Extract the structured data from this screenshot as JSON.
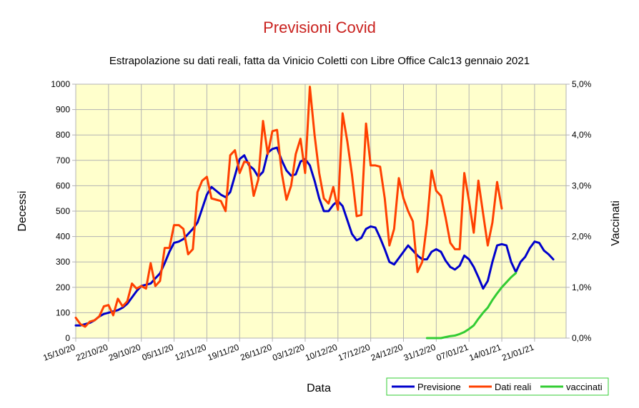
{
  "chart_data": {
    "type": "line",
    "title": "Previsioni Covid",
    "subtitle": "Estrapolazione su dati reali, fatta da Vinicio Coletti con Libre Office Calc13 gennaio 2021",
    "xlabel": "Data",
    "ylabel": "Decessi",
    "y2label": "Vaccinati",
    "x_start": "15/10/20",
    "x_end": "28/01/21",
    "ylim": [
      0,
      1000
    ],
    "y2lim": [
      0,
      5
    ],
    "y_ticks": [
      "0",
      "100",
      "200",
      "300",
      "400",
      "500",
      "600",
      "700",
      "800",
      "900",
      "1000"
    ],
    "y2_ticks": [
      "0,0%",
      "1,0%",
      "2,0%",
      "3,0%",
      "4,0%",
      "5,0%"
    ],
    "x_ticks": [
      "15/10/20",
      "22/10/20",
      "29/10/20",
      "05/11/20",
      "12/11/20",
      "19/11/20",
      "26/11/20",
      "03/12/20",
      "10/12/20",
      "17/12/20",
      "24/12/20",
      "31/12/20",
      "07/01/21",
      "14/01/21",
      "21/01/21"
    ],
    "grid": true,
    "legend_position": "bottom-right",
    "colors": {
      "plot_background": "#ffffcc",
      "grid": "#b3b3b3",
      "title": "#c9211e",
      "Previsione": "#0000cc",
      "Dati reali": "#ff4000",
      "vaccinati": "#33cc33"
    },
    "series": [
      {
        "name": "Previsione",
        "axis": "left",
        "start_date": "15/10/20",
        "values": [
          50,
          50,
          55,
          60,
          70,
          85,
          95,
          100,
          105,
          110,
          120,
          135,
          160,
          185,
          205,
          210,
          215,
          235,
          255,
          295,
          340,
          375,
          380,
          390,
          410,
          430,
          455,
          510,
          565,
          595,
          580,
          565,
          555,
          575,
          640,
          705,
          720,
          680,
          665,
          635,
          655,
          730,
          745,
          750,
          700,
          660,
          640,
          645,
          695,
          705,
          680,
          620,
          550,
          500,
          500,
          525,
          540,
          520,
          465,
          410,
          385,
          395,
          430,
          440,
          435,
          395,
          350,
          300,
          290,
          315,
          340,
          365,
          345,
          325,
          310,
          310,
          340,
          350,
          340,
          305,
          280,
          270,
          285,
          325,
          310,
          280,
          240,
          195,
          225,
          300,
          365,
          370,
          365,
          300,
          260,
          300,
          320,
          355,
          380,
          375,
          345,
          330,
          310
        ]
      },
      {
        "name": "Dati reali",
        "axis": "left",
        "start_date": "15/10/20",
        "values": [
          80,
          55,
          45,
          65,
          70,
          85,
          125,
          130,
          90,
          155,
          125,
          145,
          215,
          195,
          205,
          195,
          295,
          205,
          225,
          355,
          355,
          445,
          445,
          430,
          330,
          350,
          575,
          620,
          635,
          550,
          545,
          540,
          500,
          720,
          740,
          650,
          695,
          690,
          560,
          625,
          855,
          725,
          815,
          820,
          650,
          545,
          600,
          725,
          785,
          650,
          990,
          800,
          650,
          550,
          530,
          595,
          505,
          885,
          775,
          645,
          480,
          485,
          845,
          680,
          680,
          675,
          550,
          365,
          430,
          630,
          550,
          500,
          460,
          260,
          300,
          450,
          660,
          580,
          560,
          475,
          375,
          350,
          350,
          650,
          540,
          415,
          620,
          490,
          365,
          455,
          615,
          510
        ]
      },
      {
        "name": "vaccinati",
        "axis": "right",
        "start_date": "29/12/20",
        "values": [
          0.0,
          0.0,
          0.0,
          0.0,
          0.02,
          0.04,
          0.05,
          0.08,
          0.12,
          0.18,
          0.25,
          0.38,
          0.5,
          0.6,
          0.75,
          0.88,
          1.0,
          1.1,
          1.2,
          1.28
        ]
      }
    ]
  }
}
